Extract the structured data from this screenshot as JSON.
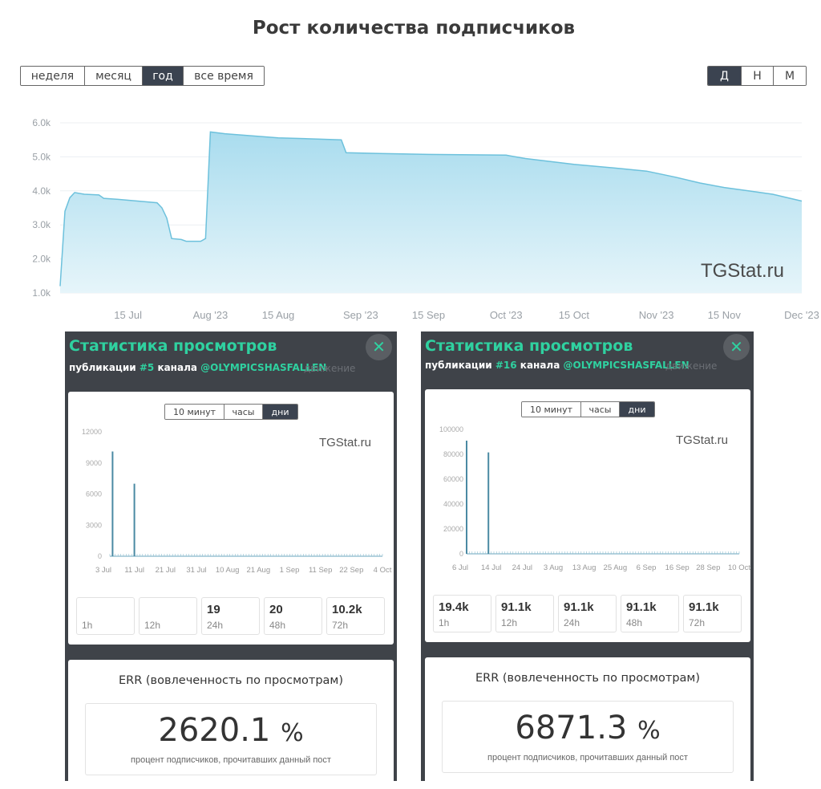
{
  "title": "Рост количества подписчиков",
  "range_buttons": [
    "неделя",
    "месяц",
    "год",
    "все время"
  ],
  "range_active": "год",
  "granularity_buttons": [
    "Д",
    "Н",
    "М"
  ],
  "granularity_active": "Д",
  "colors": {
    "accent": "#2fd1a0",
    "area_fill": "#c2e6f2",
    "line": "#6dc1dc",
    "dark": "#3b4350",
    "bar": "#4a8aa3"
  },
  "chart_data": [
    {
      "type": "area",
      "watermark": "TGStat.ru",
      "x_ticks": [
        "15 Jul",
        "Aug '23",
        "15 Aug",
        "Sep '23",
        "15 Sep",
        "Oct '23",
        "15 Oct",
        "Nov '23",
        "15 Nov",
        "Dec '23"
      ],
      "x_tick_dates": [
        "2023-07-15",
        "2023-08-01",
        "2023-08-15",
        "2023-09-01",
        "2023-09-15",
        "2023-10-01",
        "2023-10-15",
        "2023-11-01",
        "2023-11-15",
        "2023-12-01"
      ],
      "xlim": [
        "2023-07-01",
        "2023-12-01"
      ],
      "y_ticks": [
        "6.0k",
        "5.0k",
        "4.0k",
        "3.0k",
        "2.0k",
        "1.0k"
      ],
      "ylim": [
        1000,
        6000
      ],
      "grid": true,
      "points": [
        [
          "2023-07-01",
          1200
        ],
        [
          "2023-07-02",
          3400
        ],
        [
          "2023-07-03",
          3800
        ],
        [
          "2023-07-04",
          3950
        ],
        [
          "2023-07-06",
          3900
        ],
        [
          "2023-07-09",
          3880
        ],
        [
          "2023-07-10",
          3780
        ],
        [
          "2023-07-13",
          3750
        ],
        [
          "2023-07-17",
          3700
        ],
        [
          "2023-07-21",
          3650
        ],
        [
          "2023-07-22",
          3500
        ],
        [
          "2023-07-23",
          3200
        ],
        [
          "2023-07-24",
          2600
        ],
        [
          "2023-07-26",
          2570
        ],
        [
          "2023-07-27",
          2520
        ],
        [
          "2023-07-30",
          2520
        ],
        [
          "2023-07-31",
          2600
        ],
        [
          "2023-08-01",
          5730
        ],
        [
          "2023-08-04",
          5680
        ],
        [
          "2023-08-15",
          5560
        ],
        [
          "2023-08-28",
          5500
        ],
        [
          "2023-08-29",
          5120
        ],
        [
          "2023-09-05",
          5100
        ],
        [
          "2023-09-15",
          5070
        ],
        [
          "2023-10-01",
          5050
        ],
        [
          "2023-10-05",
          4950
        ],
        [
          "2023-10-15",
          4780
        ],
        [
          "2023-10-25",
          4650
        ],
        [
          "2023-10-30",
          4580
        ],
        [
          "2023-11-05",
          4400
        ],
        [
          "2023-11-10",
          4230
        ],
        [
          "2023-11-15",
          4100
        ],
        [
          "2023-11-20",
          4000
        ],
        [
          "2023-11-25",
          3900
        ],
        [
          "2023-12-01",
          3700
        ]
      ]
    },
    {
      "type": "bar",
      "watermark": "TGStat.ru",
      "x_ticks": [
        "3 Jul",
        "11 Jul",
        "21 Jul",
        "31 Jul",
        "10 Aug",
        "21 Aug",
        "1 Sep",
        "11 Sep",
        "22 Sep",
        "4 Oct"
      ],
      "y_ticks": [
        "12000",
        "9000",
        "6000",
        "3000",
        "0"
      ],
      "ylim": [
        0,
        12000
      ],
      "bars": [
        [
          1,
          10100
        ],
        [
          9,
          7000
        ]
      ],
      "day_count": 100
    },
    {
      "type": "bar",
      "watermark": "TGStat.ru",
      "x_ticks": [
        "6 Jul",
        "14 Jul",
        "24 Jul",
        "3 Aug",
        "13 Aug",
        "25 Aug",
        "6 Sep",
        "16 Sep",
        "28 Sep",
        "10 Oct"
      ],
      "y_ticks": [
        "100000",
        "80000",
        "60000",
        "40000",
        "20000",
        "0"
      ],
      "ylim": [
        0,
        100000
      ],
      "bars": [
        [
          0,
          91000
        ],
        [
          8,
          81500
        ]
      ],
      "day_count": 100
    }
  ],
  "panels": [
    {
      "title": "Статистика просмотров",
      "sub_prefix": "публикации",
      "post_num": "#5",
      "sub_mid": "канала",
      "channel": "@OLYMPICSHASFALLEN",
      "ghost": "движение",
      "tabs": [
        "10 минут",
        "часы",
        "дни"
      ],
      "tab_active": "дни",
      "cells": [
        {
          "value": "",
          "label": "1h"
        },
        {
          "value": "",
          "label": "12h"
        },
        {
          "value": "19",
          "label": "24h"
        },
        {
          "value": "20",
          "label": "48h"
        },
        {
          "value": "10.2k",
          "label": "72h"
        }
      ],
      "err_title": "ERR (вовлеченность по просмотрам)",
      "err_value": "2620.1",
      "err_unit": "%",
      "err_note": "процент подписчиков, прочитавших данный пост"
    },
    {
      "title": "Статистика просмотров",
      "sub_prefix": "публикации",
      "post_num": "#16",
      "sub_mid": "канала",
      "channel": "@OLYMPICSHASFALLEN",
      "ghost": "движение",
      "tabs": [
        "10 минут",
        "часы",
        "дни"
      ],
      "tab_active": "дни",
      "cells": [
        {
          "value": "19.4k",
          "label": "1h"
        },
        {
          "value": "91.1k",
          "label": "12h"
        },
        {
          "value": "91.1k",
          "label": "24h"
        },
        {
          "value": "91.1k",
          "label": "48h"
        },
        {
          "value": "91.1k",
          "label": "72h"
        }
      ],
      "err_title": "ERR (вовлеченность по просмотрам)",
      "err_value": "6871.3",
      "err_unit": "%",
      "err_note": "процент подписчиков, прочитавших данный пост"
    }
  ]
}
